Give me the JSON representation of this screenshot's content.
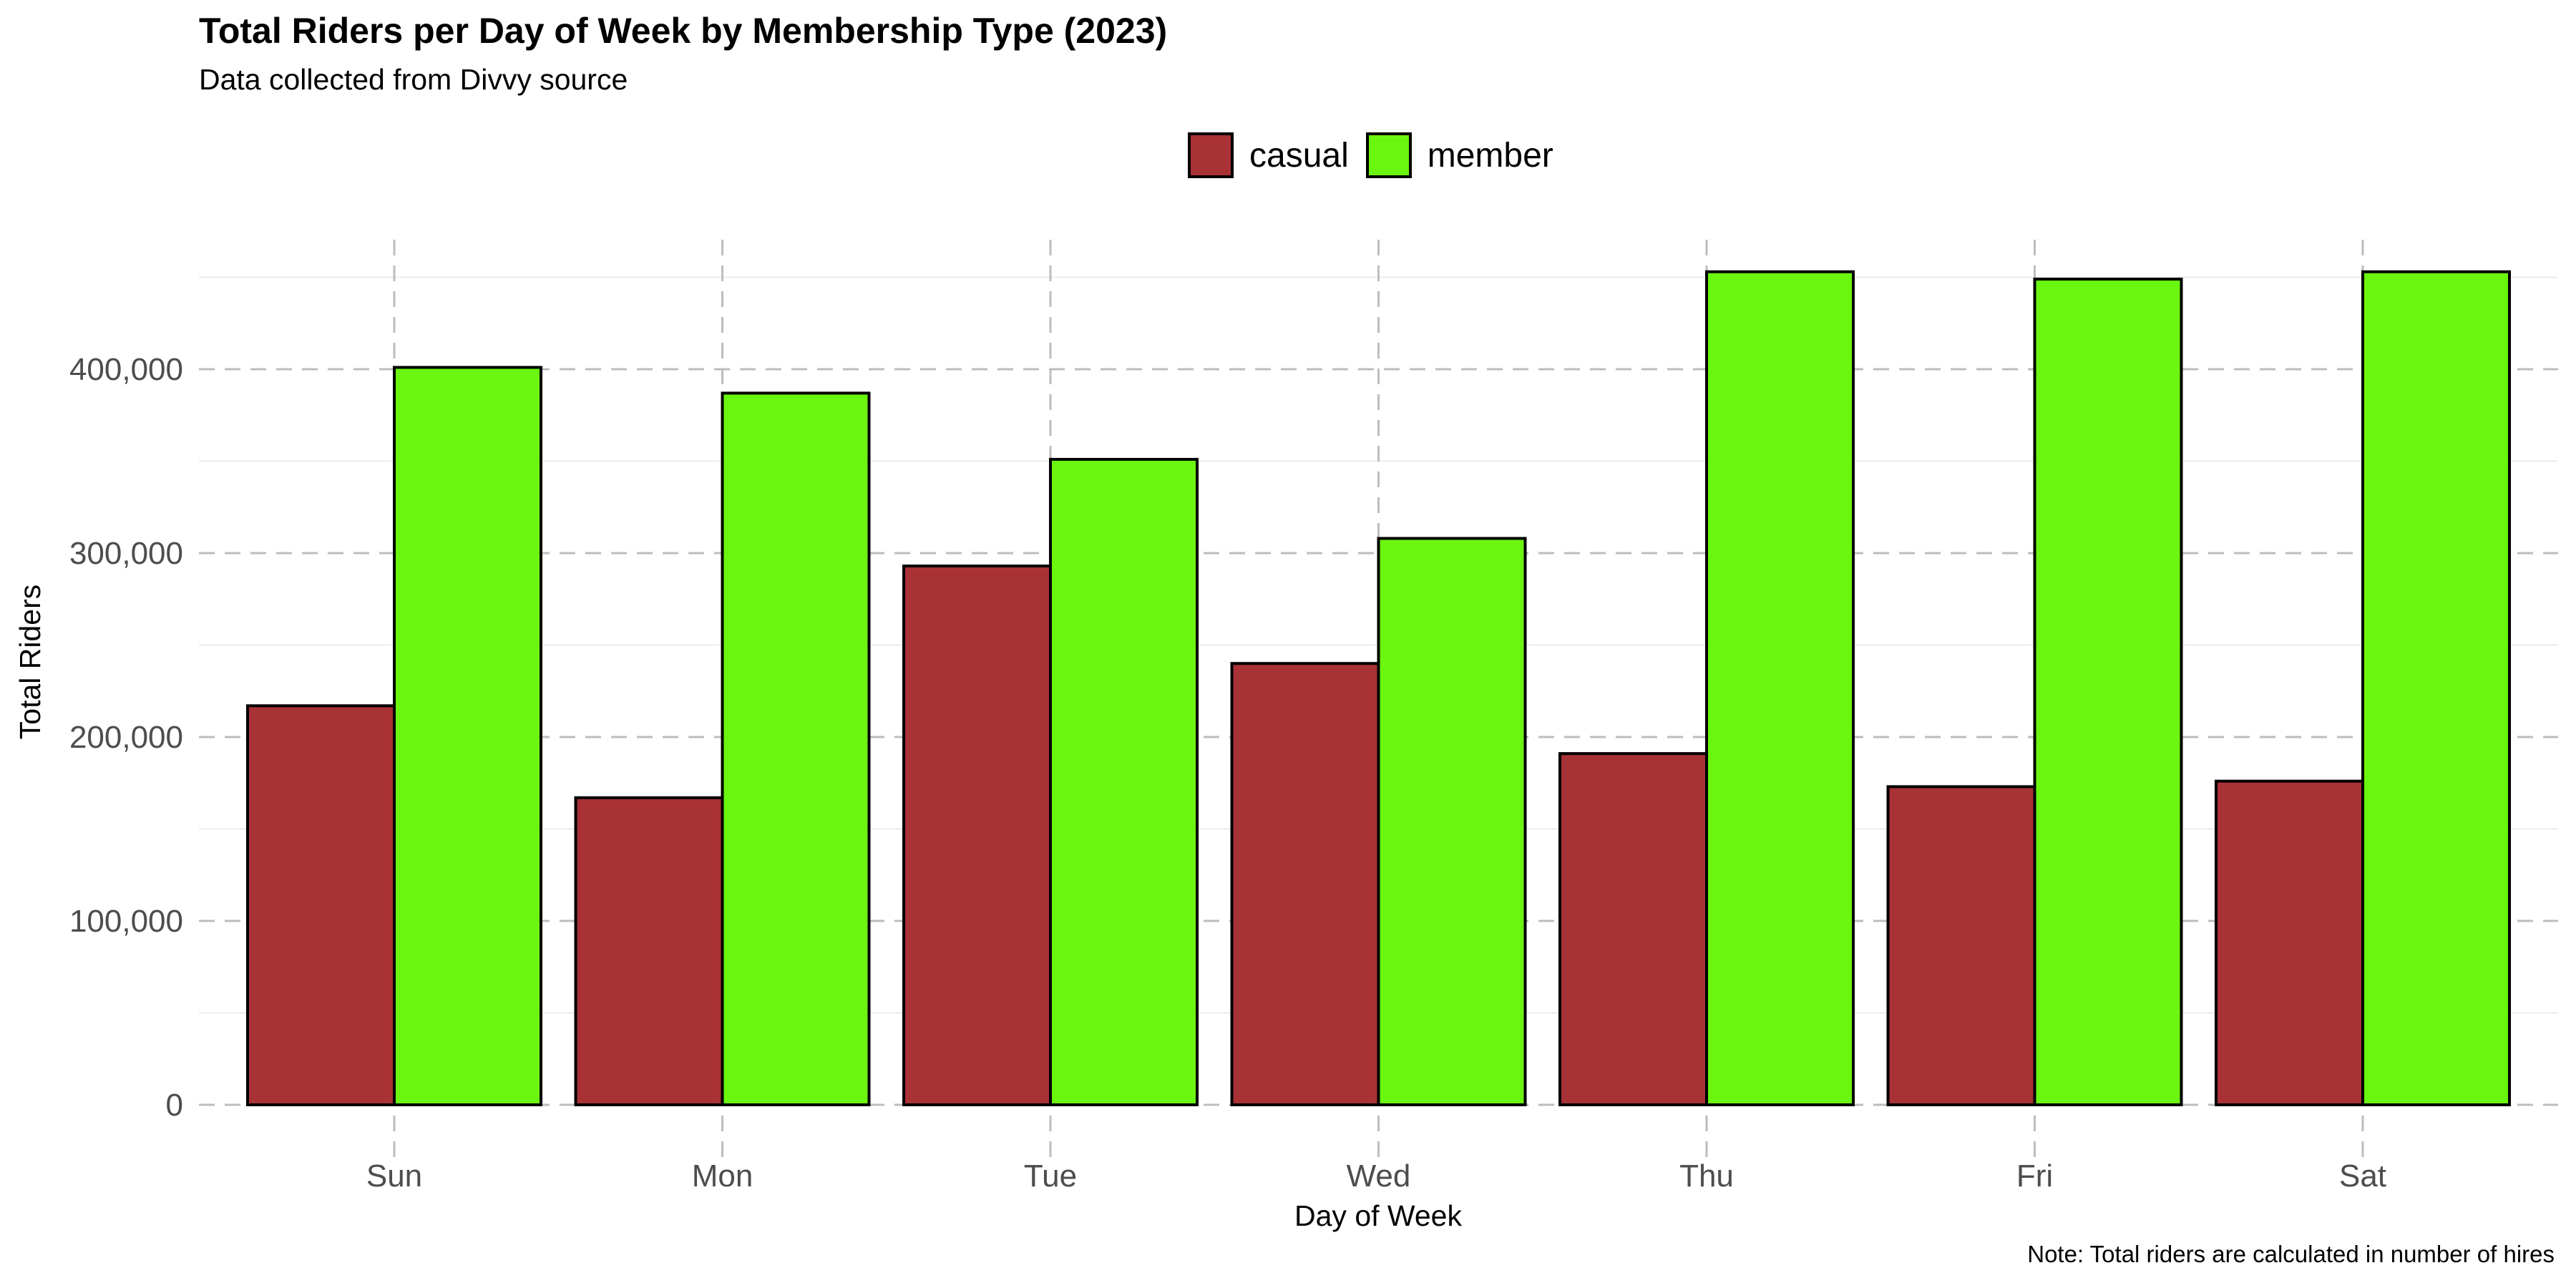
{
  "chart_data": {
    "type": "bar",
    "title": "Total Riders per Day of Week by Membership Type (2023)",
    "subtitle": "Data collected from Divvy source",
    "caption": "Note: Total riders are calculated in number of hires",
    "xlabel": "Day of Week",
    "ylabel": "Total Riders",
    "categories": [
      "Sun",
      "Mon",
      "Tue",
      "Wed",
      "Thu",
      "Fri",
      "Sat"
    ],
    "series": [
      {
        "name": "casual",
        "color": "#a83236",
        "values": [
          217000,
          167000,
          293000,
          240000,
          191000,
          173000,
          176000
        ]
      },
      {
        "name": "member",
        "color": "#6af60f",
        "values": [
          401000,
          387000,
          351000,
          308000,
          453000,
          449000,
          453000
        ]
      }
    ],
    "ylim": [
      0,
      475000
    ],
    "yticks": [
      0,
      100000,
      200000,
      300000,
      400000
    ],
    "ytick_labels": [
      "0",
      "100,000",
      "200,000",
      "300,000",
      "400,000"
    ],
    "grid": true,
    "legend_position": "top",
    "bar_outline_color": "#000000",
    "grid_color": "#bdbdbd"
  }
}
